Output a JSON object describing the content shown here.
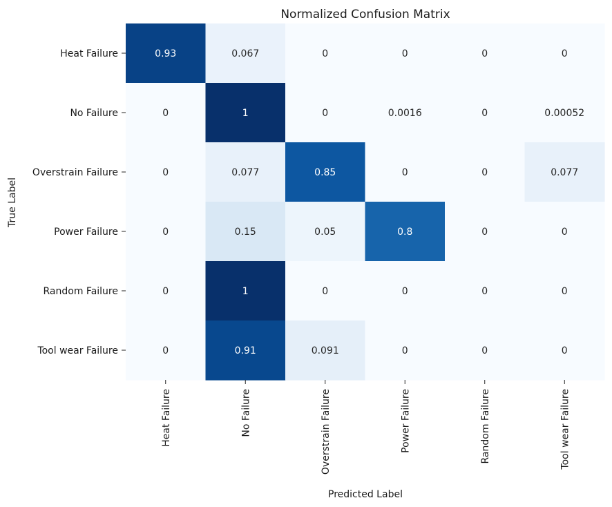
{
  "chart_data": {
    "type": "heatmap",
    "title": "Normalized Confusion Matrix",
    "xlabel": "Predicted Label",
    "ylabel": "True Label",
    "x_categories": [
      "Heat Failure",
      "No Failure",
      "Overstrain Failure",
      "Power Failure",
      "Random Failure",
      "Tool wear Failure"
    ],
    "y_categories": [
      "Heat Failure",
      "No Failure",
      "Overstrain Failure",
      "Power Failure",
      "Random Failure",
      "Tool wear Failure"
    ],
    "values": [
      [
        0.93,
        0.067,
        0,
        0,
        0,
        0
      ],
      [
        0,
        1,
        0,
        0.0016,
        0,
        0.00052
      ],
      [
        0,
        0.077,
        0.85,
        0,
        0,
        0.077
      ],
      [
        0,
        0.15,
        0.05,
        0.8,
        0,
        0
      ],
      [
        0,
        1,
        0,
        0,
        0,
        0
      ],
      [
        0,
        0.91,
        0.091,
        0,
        0,
        0
      ]
    ],
    "value_labels": [
      [
        "0.93",
        "0.067",
        "0",
        "0",
        "0",
        "0"
      ],
      [
        "0",
        "1",
        "0",
        "0.0016",
        "0",
        "0.00052"
      ],
      [
        "0",
        "0.077",
        "0.85",
        "0",
        "0",
        "0.077"
      ],
      [
        "0",
        "0.15",
        "0.05",
        "0.8",
        "0",
        "0"
      ],
      [
        "0",
        "1",
        "0",
        "0",
        "0",
        "0"
      ],
      [
        "0",
        "0.91",
        "0.091",
        "0",
        "0",
        "0"
      ]
    ],
    "value_range": [
      0,
      1
    ],
    "colormap": "Blues",
    "colorbar": false,
    "grid": false
  }
}
